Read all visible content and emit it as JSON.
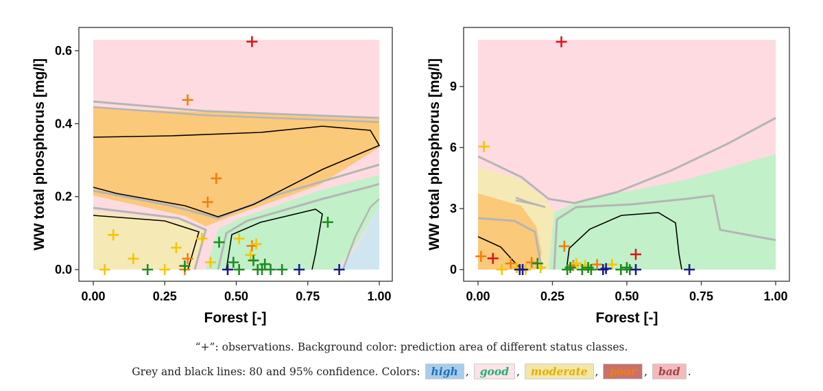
{
  "chart_data": [
    {
      "type": "scatter",
      "title": "",
      "xlabel": "Forest [-]",
      "ylabel": "WW total phosphorus [mg/l]",
      "xlim": [
        0,
        1
      ],
      "ylim": [
        -0.03,
        0.66
      ],
      "x_ticks": [
        "0.00",
        "0.25",
        "0.50",
        "0.75",
        "1.00"
      ],
      "x_tick_values": [
        0,
        0.25,
        0.5,
        0.75,
        1.0
      ],
      "y_ticks": [
        "0.0",
        "0.2",
        "0.4",
        "0.6"
      ],
      "y_tick_values": [
        0,
        0.2,
        0.4,
        0.6
      ],
      "series": [
        {
          "class": "bad",
          "color": "#d7191c",
          "points": [
            [
              0.555,
              0.625
            ]
          ]
        },
        {
          "class": "poor",
          "color": "#f07f0a",
          "points": [
            [
              0.33,
              0.465
            ],
            [
              0.43,
              0.25
            ],
            [
              0.4,
              0.185
            ],
            [
              0.33,
              0.03
            ],
            [
              0.32,
              0.0
            ],
            [
              0.555,
              0.065
            ]
          ]
        },
        {
          "class": "moderate",
          "color": "#f5c600",
          "points": [
            [
              0.04,
              0.0
            ],
            [
              0.07,
              0.095
            ],
            [
              0.14,
              0.03
            ],
            [
              0.25,
              0.0
            ],
            [
              0.29,
              0.06
            ],
            [
              0.38,
              0.085
            ],
            [
              0.41,
              0.02
            ],
            [
              0.51,
              0.085
            ],
            [
              0.57,
              0.07
            ],
            [
              0.55,
              0.04
            ]
          ]
        },
        {
          "class": "good",
          "color": "#1f8a1f",
          "points": [
            [
              0.19,
              0.0
            ],
            [
              0.32,
              0.01
            ],
            [
              0.44,
              0.075
            ],
            [
              0.49,
              0.02
            ],
            [
              0.51,
              0.0
            ],
            [
              0.56,
              0.025
            ],
            [
              0.575,
              0.0
            ],
            [
              0.59,
              0.0
            ],
            [
              0.6,
              0.015
            ],
            [
              0.62,
              0.0
            ],
            [
              0.66,
              0.0
            ],
            [
              0.82,
              0.13
            ]
          ]
        },
        {
          "class": "high",
          "color": "#1a1a8c",
          "points": [
            [
              0.47,
              0.0
            ],
            [
              0.72,
              0.0
            ],
            [
              0.86,
              0.0
            ]
          ]
        }
      ]
    },
    {
      "type": "scatter",
      "title": "",
      "xlabel": "Forest [-]",
      "ylabel": "WW total phosphorus [mg/l]",
      "xlim": [
        0,
        1
      ],
      "ylim": [
        -0.5,
        11.8
      ],
      "x_ticks": [
        "0.00",
        "0.25",
        "0.50",
        "0.75",
        "1.00"
      ],
      "x_tick_values": [
        0,
        0.25,
        0.5,
        0.75,
        1.0
      ],
      "y_ticks": [
        "0",
        "3",
        "6",
        "9"
      ],
      "y_tick_values": [
        0,
        3,
        6,
        9
      ],
      "series": [
        {
          "class": "bad",
          "color": "#d7191c",
          "points": [
            [
              0.28,
              11.2
            ],
            [
              0.05,
              0.55
            ],
            [
              0.53,
              0.75
            ]
          ]
        },
        {
          "class": "poor",
          "color": "#f07f0a",
          "points": [
            [
              0.01,
              0.65
            ],
            [
              0.29,
              1.15
            ],
            [
              0.11,
              0.3
            ],
            [
              0.18,
              0.35
            ],
            [
              0.32,
              0.2
            ],
            [
              0.4,
              0.25
            ]
          ]
        },
        {
          "class": "moderate",
          "color": "#f5c600",
          "points": [
            [
              0.02,
              6.05
            ],
            [
              0.08,
              0.0
            ],
            [
              0.13,
              0.1
            ],
            [
              0.16,
              0.0
            ],
            [
              0.21,
              0.1
            ],
            [
              0.33,
              0.3
            ],
            [
              0.36,
              0.2
            ],
            [
              0.45,
              0.25
            ]
          ]
        },
        {
          "class": "good",
          "color": "#1f8a1f",
          "points": [
            [
              0.2,
              0.3
            ],
            [
              0.3,
              0.0
            ],
            [
              0.31,
              0.1
            ],
            [
              0.35,
              0.0
            ],
            [
              0.37,
              0.1
            ],
            [
              0.38,
              0.0
            ],
            [
              0.48,
              0.0
            ],
            [
              0.5,
              0.1
            ],
            [
              0.51,
              0.0
            ]
          ]
        },
        {
          "class": "high",
          "color": "#1a1a8c",
          "points": [
            [
              0.14,
              0.0
            ],
            [
              0.15,
              0.0
            ],
            [
              0.42,
              0.0
            ],
            [
              0.43,
              0.05
            ],
            [
              0.53,
              0.0
            ],
            [
              0.71,
              0.0
            ]
          ]
        }
      ]
    }
  ],
  "caption": {
    "line1": "“+”: observations. Background color: prediction area of different status classes.",
    "line2_prefix": "Grey and black lines: 80 and 95% confidence. Colors:",
    "sep": ",",
    "end": ".",
    "legend": [
      {
        "key": "high",
        "label": "high",
        "bg": "#a9cde8",
        "fg": "#1f6fbf"
      },
      {
        "key": "good",
        "label": "good",
        "bg": "#fde3e6",
        "fg": "#23b07a"
      },
      {
        "key": "moderate",
        "label": "moderate",
        "bg": "#f3e6a9",
        "fg": "#e2b100"
      },
      {
        "key": "poor",
        "label": "poor",
        "bg": "#c9716b",
        "fg": "#f07f0a"
      },
      {
        "key": "bad",
        "label": "bad",
        "bg": "#f4b9bd",
        "fg": "#9b4743"
      }
    ]
  },
  "colors": {
    "bad_area": "#fddbe0",
    "poor_area": "#fbc97a",
    "moderate_area": "#f5e9b6",
    "good_area": "#c2f0c9",
    "high_area": "#cfe6f1",
    "grey_line": "#b5b5b5",
    "black_line": "#000000"
  }
}
